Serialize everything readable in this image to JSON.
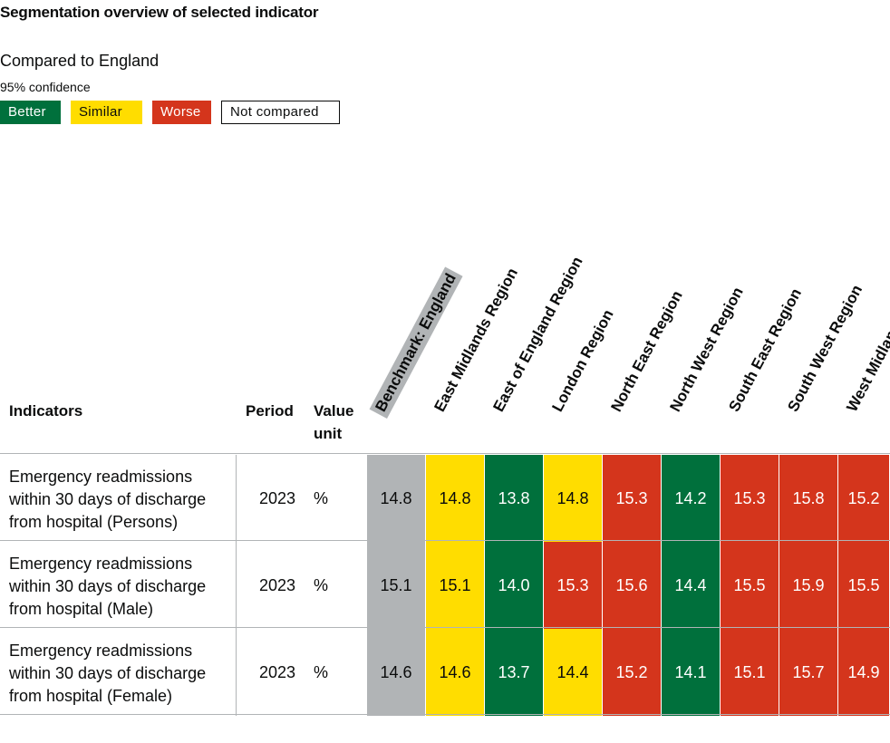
{
  "title": "Segmentation overview of selected indicator",
  "compared_to": "Compared to England",
  "confidence": "95% confidence",
  "legend": {
    "better": "Better",
    "similar": "Similar",
    "worse": "Worse",
    "not_compared": "Not compared"
  },
  "colors": {
    "better": "#00703c",
    "similar": "#ffdd00",
    "worse": "#d4351c",
    "benchmark": "#b1b4b6"
  },
  "headers": {
    "indicators": "Indicators",
    "period": "Period",
    "value_unit": "Value unit"
  },
  "areas": [
    "Benchmark: England",
    "East Midlands Region",
    "East of England Region",
    "London Region",
    "North East Region",
    "North West Region",
    "South East Region",
    "South West Region",
    "West Midlands Region"
  ],
  "rows": [
    {
      "indicator": "Emergency readmissions within 30 days of discharge from hospital (Persons)",
      "period": "2023",
      "unit": "%",
      "values": [
        "14.8",
        "14.8",
        "13.8",
        "14.8",
        "15.3",
        "14.2",
        "15.3",
        "15.8",
        "15.2"
      ],
      "status": [
        "benchmark",
        "similar",
        "better",
        "similar",
        "worse",
        "better",
        "worse",
        "worse",
        "worse"
      ]
    },
    {
      "indicator": "Emergency readmissions within 30 days of discharge from hospital (Male)",
      "period": "2023",
      "unit": "%",
      "values": [
        "15.1",
        "15.1",
        "14.0",
        "15.3",
        "15.6",
        "14.4",
        "15.5",
        "15.9",
        "15.5"
      ],
      "status": [
        "benchmark",
        "similar",
        "better",
        "worse",
        "worse",
        "better",
        "worse",
        "worse",
        "worse"
      ]
    },
    {
      "indicator": "Emergency readmissions within 30 days of discharge from hospital (Female)",
      "period": "2023",
      "unit": "%",
      "values": [
        "14.6",
        "14.6",
        "13.7",
        "14.4",
        "15.2",
        "14.1",
        "15.1",
        "15.7",
        "14.9"
      ],
      "status": [
        "benchmark",
        "similar",
        "better",
        "similar",
        "worse",
        "better",
        "worse",
        "worse",
        "worse"
      ]
    }
  ]
}
